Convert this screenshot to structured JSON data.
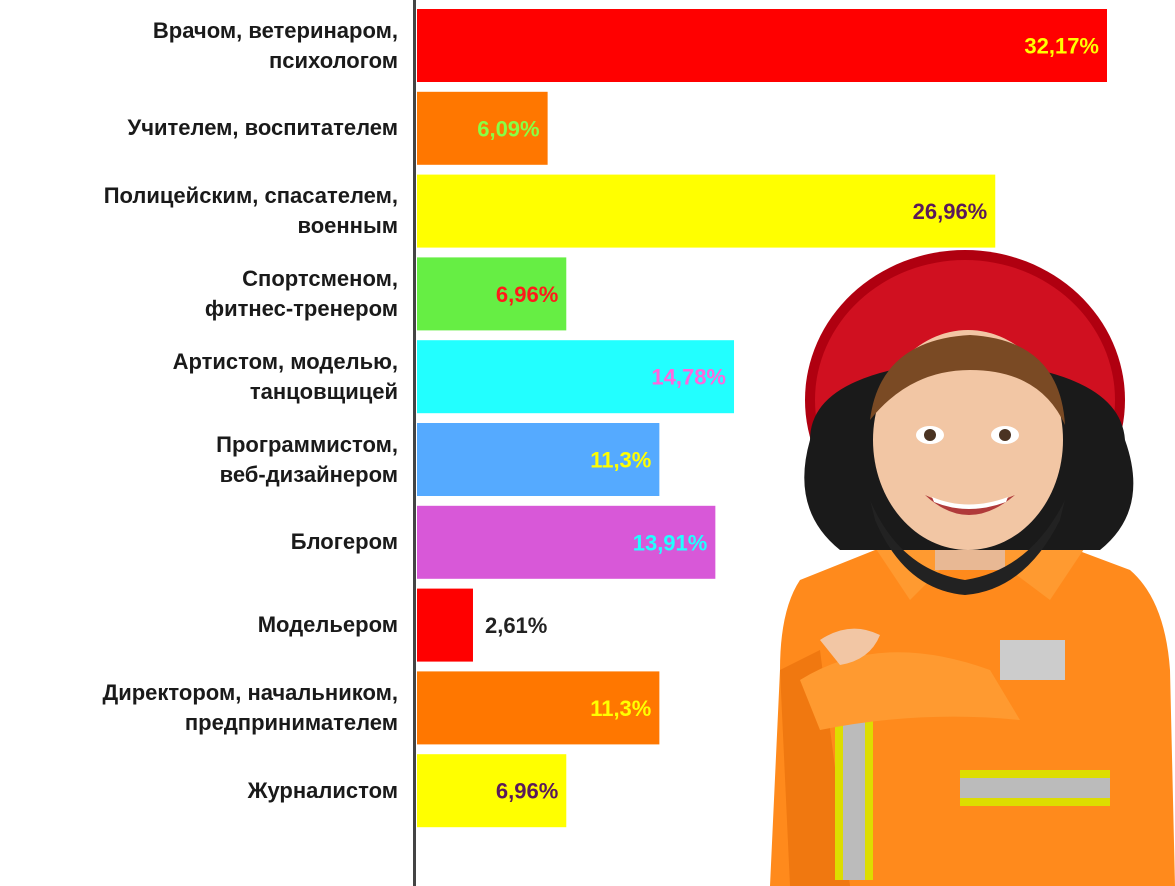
{
  "chart_data": {
    "type": "bar",
    "orientation": "horizontal",
    "categories": [
      "Врачом, ветеринаром,\nпсихологом",
      "Учителем, воспитателем",
      "Полицейским, спасателем,\nвоенным",
      "Спортсменом,\nфитнес-тренером",
      "Артистом, моделью,\nтанцовщицей",
      "Программистом,\nвеб-дизайнером",
      "Блогером",
      "Модельером",
      "Директором, начальником,\nпредпринимателем",
      "Журналистом"
    ],
    "values": [
      32.17,
      6.09,
      26.96,
      6.96,
      14.78,
      11.3,
      13.91,
      2.61,
      11.3,
      6.96
    ],
    "value_labels": [
      "32,17%",
      "6,09%",
      "26,96%",
      "6,96%",
      "14,78%",
      "11,3%",
      "13,91%",
      "2,61%",
      "11,3%",
      "6,96%"
    ],
    "bar_colors": [
      "#ff0000",
      "#ff7700",
      "#ffff00",
      "#66ee44",
      "#22ffff",
      "#55aaff",
      "#d858d8",
      "#ff0000",
      "#ff7700",
      "#ffff00"
    ],
    "label_colors": [
      "#ffff00",
      "#88ff44",
      "#5a1a5a",
      "#ff1a1a",
      "#ff66dd",
      "#ffff00",
      "#22ffff",
      "#222222",
      "#ffff00",
      "#5a1a5a"
    ],
    "label_outside": [
      false,
      false,
      false,
      false,
      false,
      false,
      false,
      true,
      false,
      false
    ],
    "xlim": [
      0,
      32.17
    ],
    "grid": false,
    "legend": "none",
    "title": "",
    "xlabel": "",
    "ylabel": ""
  },
  "illustration": {
    "icon": "child-firefighter-photo"
  }
}
